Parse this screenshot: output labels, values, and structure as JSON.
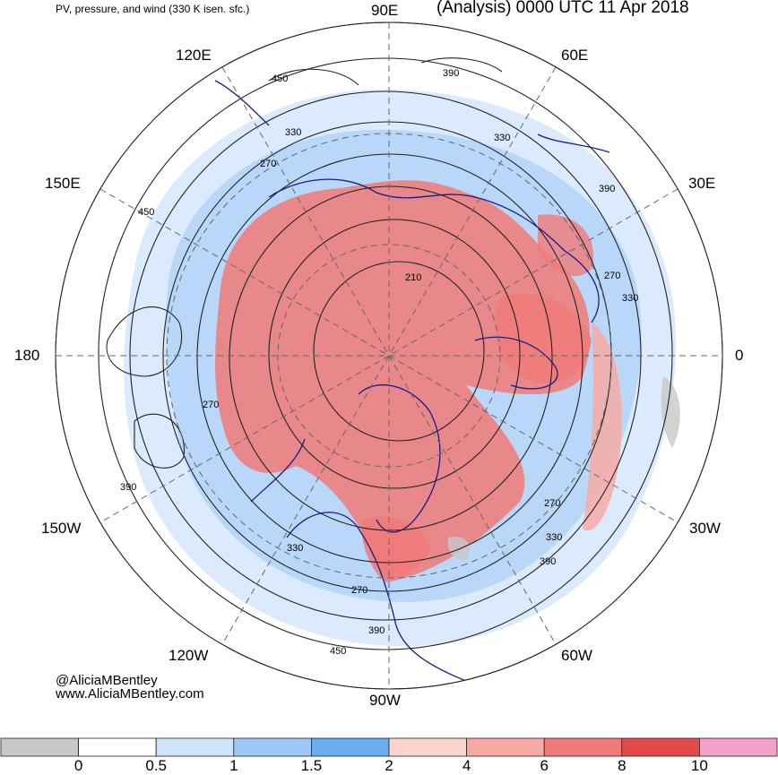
{
  "header": {
    "subtitle": "PV, pressure, and wind (330 K isen. sfc.)",
    "title": "(Analysis) 0000 UTC 11 Apr 2018"
  },
  "longitudes": {
    "e90": "90E",
    "e120": "120E",
    "e60": "60E",
    "e150": "150E",
    "e30": "30E",
    "w180": "180",
    "e0": "0",
    "w150": "150W",
    "w30": "30W",
    "w120": "120W",
    "w60": "60W",
    "w90": "90W"
  },
  "contour_labels": [
    "450",
    "390",
    "330",
    "390",
    "330",
    "270",
    "450",
    "390",
    "270",
    "330",
    "210",
    "270",
    "390",
    "270",
    "330",
    "390",
    "330",
    "270",
    "390",
    "450"
  ],
  "credits": {
    "handle": "@AliciaMBentley",
    "website": "www.AliciaMBentley.com"
  },
  "colorbar": {
    "colors": [
      "#c8c8c8",
      "#ffffff",
      "#cfe3fb",
      "#9dc8f5",
      "#6aaef0",
      "#fbd4d0",
      "#f7aaa4",
      "#f07a78",
      "#e24a4a",
      "#f3a0cc"
    ],
    "labels": [
      "0",
      "0.5",
      "1",
      "1.5",
      "2",
      "4",
      "6",
      "8",
      "10"
    ]
  },
  "colors": {
    "high_pv": "#f07a78",
    "mid_pv": "#f7aaa4",
    "low_pv": "#9dc8f5",
    "coastline": "#1a1a8c",
    "contour": "#222222",
    "grid": "#666666"
  }
}
